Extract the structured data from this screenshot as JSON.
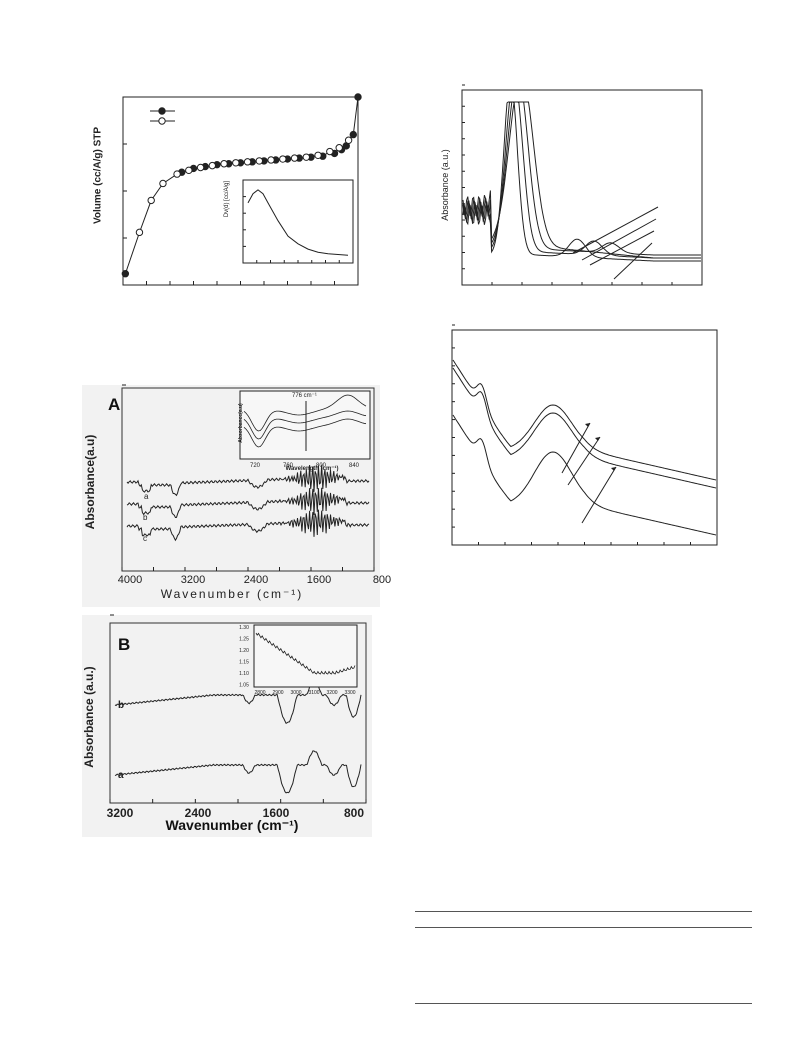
{
  "chart_data": [
    {
      "id": "isotherm",
      "type": "scatter",
      "ylabel": "Volume (cc/A/g) STP",
      "xlabel": "",
      "xlim": [
        0,
        1
      ],
      "ylim": [
        0,
        100
      ],
      "series": [
        {
          "marker": "filled",
          "x": [
            0.01,
            0.25,
            0.3,
            0.35,
            0.4,
            0.45,
            0.5,
            0.55,
            0.6,
            0.65,
            0.7,
            0.75,
            0.8,
            0.85,
            0.9,
            0.93,
            0.95,
            0.98,
            1.0
          ],
          "y": [
            6,
            60,
            62,
            63,
            64,
            64.5,
            65,
            65.5,
            66,
            66.5,
            67,
            67.5,
            68,
            68.5,
            70,
            72,
            74,
            80,
            100
          ]
        },
        {
          "marker": "open",
          "x": [
            0.07,
            0.12,
            0.17,
            0.23,
            0.28,
            0.33,
            0.38,
            0.43,
            0.48,
            0.53,
            0.58,
            0.63,
            0.68,
            0.73,
            0.78,
            0.83,
            0.88,
            0.92,
            0.96
          ],
          "y": [
            28,
            45,
            54,
            59,
            61,
            62.5,
            63.5,
            64.5,
            65,
            65.5,
            66,
            66.5,
            67,
            67.5,
            68,
            69,
            71,
            73,
            77
          ]
        }
      ],
      "inset": {
        "ylabel": "Dv(d) [cc/A/g]",
        "x": [
          0,
          0.05,
          0.1,
          0.15,
          0.2,
          0.3,
          0.4,
          0.5,
          0.6,
          0.7,
          0.8,
          0.9,
          1.0
        ],
        "y": [
          0.78,
          0.9,
          0.95,
          0.9,
          0.78,
          0.55,
          0.35,
          0.25,
          0.18,
          0.14,
          0.12,
          0.11,
          0.1
        ]
      }
    },
    {
      "id": "ftir-A",
      "type": "line",
      "panel_label": "A",
      "xlabel": "Wavenumber (cm⁻¹)",
      "ylabel": "Absorbance(a.u)",
      "xticks": [
        "4000",
        "3200",
        "2400",
        "1600",
        "800"
      ],
      "series": [
        {
          "name": "a",
          "offset": 0
        },
        {
          "name": "b",
          "offset": 1
        },
        {
          "name": "c",
          "offset": 2
        }
      ],
      "inset": {
        "ylabel": "Absorbance(a.u)",
        "xlabel": "Wavelength (cm⁻¹)",
        "xticks": [
          "720",
          "760",
          "800",
          "840"
        ],
        "annotation": "776 cm⁻¹"
      }
    },
    {
      "id": "ftir-B",
      "type": "line",
      "panel_label": "B",
      "xlabel": "Wavenumber (cm⁻¹)",
      "ylabel": "Absorbance (a.u.)",
      "xticks": [
        "3200",
        "2400",
        "1600",
        "800"
      ],
      "series": [
        {
          "name": "b",
          "offset": 0
        },
        {
          "name": "a",
          "offset": 1
        }
      ],
      "inset": {
        "yticks": [
          "1.30",
          "1.25",
          "1.20",
          "1.15",
          "1.10",
          "1.05"
        ],
        "xticks": [
          "2800",
          "2900",
          "3000",
          "3100",
          "3200",
          "3300"
        ]
      }
    },
    {
      "id": "uvvis-top",
      "type": "line",
      "ylabel": "Absorbance (a.u.)",
      "xlabel": "",
      "series_count": 4
    },
    {
      "id": "uvvis-bottom",
      "type": "line",
      "xlabel": "",
      "ylabel": "",
      "series_count": 3
    }
  ]
}
